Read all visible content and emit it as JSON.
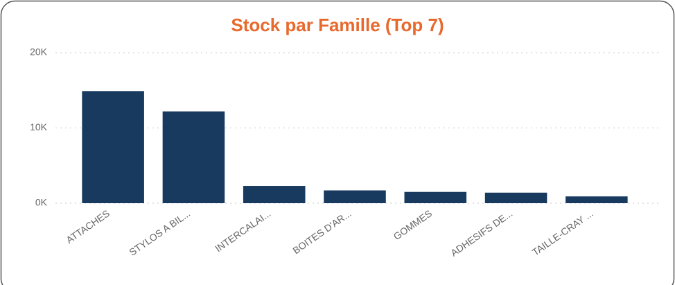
{
  "chart_data": {
    "type": "bar",
    "title": "Stock par Famille (Top 7)",
    "categories": [
      "ATTACHES",
      "STYLOS A BIL...",
      "INTERCALAI...",
      "BOITES D'AR...",
      "GOMMES",
      "ADHESIFS DE...",
      "TAILLE-CRAY ..."
    ],
    "values": [
      14900,
      12200,
      2300,
      1700,
      1500,
      1400,
      900
    ],
    "color": "#173a5e",
    "ylim": [
      0,
      20000
    ],
    "yticks": [
      {
        "value": 0,
        "label": "0K"
      },
      {
        "value": 10000,
        "label": "10K"
      },
      {
        "value": 20000,
        "label": "20K"
      }
    ],
    "grid": true
  }
}
